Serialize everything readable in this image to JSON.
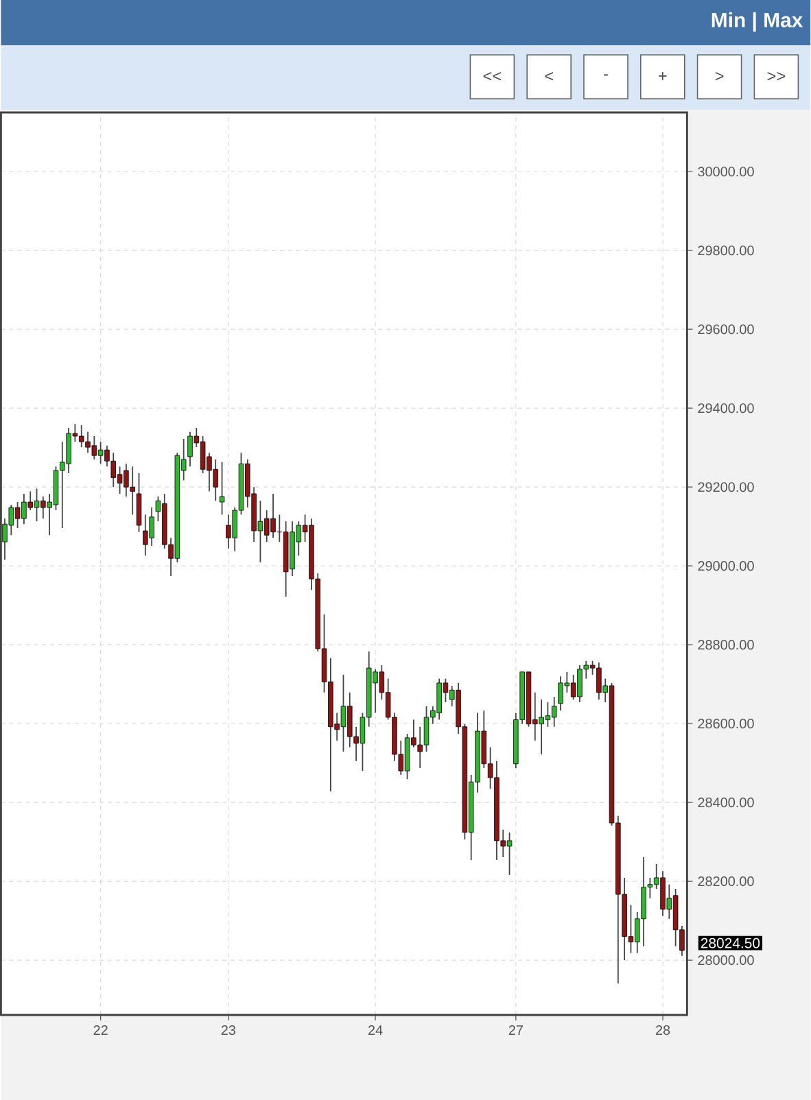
{
  "chart_data": {
    "type": "candlestick",
    "categories": [
      null,
      null,
      null,
      null,
      null,
      null,
      null,
      null,
      null,
      null,
      null,
      null,
      null,
      null,
      null,
      "22",
      null,
      null,
      null,
      null,
      null,
      null,
      null,
      null,
      null,
      null,
      null,
      null,
      null,
      null,
      null,
      null,
      null,
      null,
      null,
      "23",
      null,
      null,
      null,
      null,
      null,
      null,
      null,
      null,
      null,
      null,
      null,
      null,
      null,
      null,
      null,
      null,
      null,
      null,
      null,
      null,
      null,
      null,
      "24",
      null,
      null,
      null,
      null,
      null,
      null,
      null,
      null,
      null,
      null,
      null,
      null,
      null,
      null,
      null,
      null,
      null,
      null,
      null,
      null,
      null,
      "27",
      null,
      null,
      null,
      null,
      null,
      null,
      null,
      null,
      null,
      null,
      null,
      null,
      null,
      null,
      null,
      null,
      null,
      null,
      null,
      null,
      null,
      null,
      "28",
      null,
      null,
      null
    ],
    "ohlc": [
      [
        29061,
        29120,
        29016,
        29106
      ],
      [
        29103,
        29155,
        29078,
        29148
      ],
      [
        29148,
        29162,
        29096,
        29120
      ],
      [
        29120,
        29183,
        29106,
        29162
      ],
      [
        29162,
        29189,
        29141,
        29148
      ],
      [
        29148,
        29196,
        29113,
        29165
      ],
      [
        29165,
        29176,
        29120,
        29148
      ],
      [
        29148,
        29183,
        29078,
        29162
      ],
      [
        29155,
        29252,
        29141,
        29242
      ],
      [
        29242,
        29315,
        29096,
        29263
      ],
      [
        29259,
        29350,
        29235,
        29336
      ],
      [
        29336,
        29360,
        29315,
        29329
      ],
      [
        29329,
        29357,
        29301,
        29315
      ],
      [
        29315,
        29340,
        29287,
        29301
      ],
      [
        29305,
        29329,
        29270,
        29280
      ],
      [
        29280,
        29315,
        29259,
        29294
      ],
      [
        29294,
        29305,
        29252,
        29266
      ],
      [
        29266,
        29287,
        29200,
        29224
      ],
      [
        29232,
        29252,
        29183,
        29210
      ],
      [
        29242,
        29259,
        29176,
        29200
      ],
      [
        29200,
        29252,
        29130,
        29189
      ],
      [
        29183,
        29235,
        29086,
        29103
      ],
      [
        29089,
        29130,
        29026,
        29054
      ],
      [
        29071,
        29148,
        29051,
        29124
      ],
      [
        29138,
        29176,
        29113,
        29165
      ],
      [
        29158,
        29183,
        29044,
        29054
      ],
      [
        29054,
        29071,
        28974,
        29019
      ],
      [
        29019,
        29287,
        29009,
        29280
      ],
      [
        29242,
        29322,
        29217,
        29270
      ],
      [
        29277,
        29340,
        29252,
        29329
      ],
      [
        29329,
        29350,
        29301,
        29312
      ],
      [
        29315,
        29329,
        29235,
        29245
      ],
      [
        29277,
        29287,
        29189,
        29242
      ],
      [
        29245,
        29270,
        29165,
        29200
      ],
      [
        29162,
        29263,
        29130,
        29176
      ],
      [
        29103,
        29130,
        29044,
        29071
      ],
      [
        29071,
        29148,
        29037,
        29141
      ],
      [
        29141,
        29287,
        29130,
        29259
      ],
      [
        29259,
        29270,
        29148,
        29176
      ],
      [
        29183,
        29200,
        29061,
        29089
      ],
      [
        29089,
        29165,
        29009,
        29113
      ],
      [
        29120,
        29141,
        29061,
        29078
      ],
      [
        29120,
        29183,
        29071,
        29086
      ],
      [
        29086,
        29130,
        29061,
        29086
      ],
      [
        29086,
        29113,
        28922,
        28985
      ],
      [
        28992,
        29113,
        28974,
        29086
      ],
      [
        29061,
        29113,
        29026,
        29103
      ],
      [
        29103,
        29130,
        29061,
        29086
      ],
      [
        29103,
        29120,
        28939,
        28967
      ],
      [
        28967,
        28981,
        28783,
        28790
      ],
      [
        28790,
        28877,
        28679,
        28706
      ],
      [
        28706,
        28766,
        28428,
        28592
      ],
      [
        28599,
        28627,
        28557,
        28585
      ],
      [
        28592,
        28724,
        28529,
        28644
      ],
      [
        28644,
        28679,
        28540,
        28567
      ],
      [
        28567,
        28592,
        28505,
        28550
      ],
      [
        28550,
        28627,
        28480,
        28616
      ],
      [
        28616,
        28783,
        28592,
        28741
      ],
      [
        28703,
        28738,
        28627,
        28731
      ],
      [
        28731,
        28748,
        28661,
        28679
      ],
      [
        28679,
        28714,
        28610,
        28616
      ],
      [
        28616,
        28627,
        28505,
        28522
      ],
      [
        28522,
        28557,
        28470,
        28480
      ],
      [
        28480,
        28574,
        28459,
        28564
      ],
      [
        28564,
        28610,
        28540,
        28546
      ],
      [
        28546,
        28592,
        28487,
        28529
      ],
      [
        28546,
        28644,
        28529,
        28616
      ],
      [
        28616,
        28644,
        28599,
        28633
      ],
      [
        28627,
        28714,
        28610,
        28703
      ],
      [
        28703,
        28714,
        28654,
        28679
      ],
      [
        28661,
        28696,
        28644,
        28685
      ],
      [
        28685,
        28703,
        28574,
        28592
      ],
      [
        28592,
        28599,
        28306,
        28324
      ],
      [
        28324,
        28470,
        28254,
        28452
      ],
      [
        28452,
        28627,
        28425,
        28581
      ],
      [
        28581,
        28633,
        28487,
        28498
      ],
      [
        28498,
        28540,
        28435,
        28463
      ],
      [
        28463,
        28505,
        28254,
        28303
      ],
      [
        28303,
        28331,
        28261,
        28289
      ],
      [
        28289,
        28324,
        28216,
        28303
      ],
      [
        28498,
        28627,
        28487,
        28610
      ],
      [
        28610,
        28731,
        28599,
        28731
      ],
      [
        28731,
        28731,
        28592,
        28599
      ],
      [
        28610,
        28679,
        28557,
        28599
      ],
      [
        28599,
        28661,
        28522,
        28616
      ],
      [
        28610,
        28654,
        28592,
        28620
      ],
      [
        28616,
        28668,
        28592,
        28644
      ],
      [
        28651,
        28720,
        28633,
        28703
      ],
      [
        28696,
        28731,
        28679,
        28703
      ],
      [
        28703,
        28724,
        28661,
        28668
      ],
      [
        28668,
        28748,
        28654,
        28738
      ],
      [
        28738,
        28759,
        28714,
        28748
      ],
      [
        28748,
        28759,
        28724,
        28741
      ],
      [
        28741,
        28755,
        28661,
        28679
      ],
      [
        28679,
        28714,
        28654,
        28696
      ],
      [
        28696,
        28703,
        28341,
        28348
      ],
      [
        28348,
        28366,
        27941,
        28167
      ],
      [
        28167,
        28209,
        28000,
        28060
      ],
      [
        28060,
        28140,
        28018,
        28046
      ],
      [
        28046,
        28122,
        28018,
        28105
      ],
      [
        28105,
        28261,
        28035,
        28185
      ],
      [
        28185,
        28209,
        28157,
        28192
      ],
      [
        28192,
        28244,
        28181,
        28209
      ],
      [
        28209,
        28226,
        28112,
        28129
      ],
      [
        28129,
        28192,
        28105,
        28157
      ],
      [
        28164,
        28181,
        28035,
        28077
      ],
      [
        28077,
        28087,
        28011,
        28024.5
      ]
    ],
    "colors": [
      "#33b533",
      "#33b533",
      "#8b1616",
      "#33b533",
      "#8b1616",
      "#33b533",
      "#8b1616",
      "#33b533",
      "#33b533",
      "#33b533",
      "#33b533",
      "#8b1616",
      "#8b1616",
      "#8b1616",
      "#8b1616",
      "#33b533",
      "#8b1616",
      "#8b1616",
      "#8b1616",
      "#8b1616",
      "#8b1616",
      "#8b1616",
      "#8b1616",
      "#33b533",
      "#33b533",
      "#8b1616",
      "#8b1616",
      "#33b533",
      "#33b533",
      "#33b533",
      "#8b1616",
      "#8b1616",
      "#8b1616",
      "#8b1616",
      "#33b533",
      "#8b1616",
      "#33b533",
      "#33b533",
      "#8b1616",
      "#8b1616",
      "#33b533",
      "#8b1616",
      "#8b1616",
      "#8b1616",
      "#8b1616",
      "#33b533",
      "#33b533",
      "#8b1616",
      "#8b1616",
      "#8b1616",
      "#8b1616",
      "#8b1616",
      "#8b1616",
      "#33b533",
      "#8b1616",
      "#8b1616",
      "#33b533",
      "#33b533",
      "#33b533",
      "#8b1616",
      "#8b1616",
      "#8b1616",
      "#8b1616",
      "#33b533",
      "#8b1616",
      "#8b1616",
      "#33b533",
      "#33b533",
      "#33b533",
      "#8b1616",
      "#33b533",
      "#8b1616",
      "#8b1616",
      "#33b533",
      "#33b533",
      "#8b1616",
      "#8b1616",
      "#8b1616",
      "#8b1616",
      "#33b533",
      "#33b533",
      "#33b533",
      "#8b1616",
      "#8b1616",
      "#33b533",
      "#33b533",
      "#33b533",
      "#33b533",
      "#33b533",
      "#8b1616",
      "#33b533",
      "#33b533",
      "#8b1616",
      "#8b1616",
      "#33b533",
      "#8b1616",
      "#8b1616",
      "#8b1616",
      "#8b1616",
      "#33b533",
      "#33b533",
      "#33b533",
      "#33b533",
      "#8b1616",
      "#33b533",
      "#8b1616",
      "#8b1616"
    ],
    "ylim": [
      27861,
      30150
    ],
    "yticks": [
      {
        "value": 28000,
        "label": "28000.00"
      },
      {
        "value": 28200,
        "label": "28200.00"
      },
      {
        "value": 28400,
        "label": "28400.00"
      },
      {
        "value": 28600,
        "label": "28600.00"
      },
      {
        "value": 28800,
        "label": "28800.00"
      },
      {
        "value": 29000,
        "label": "29000.00"
      },
      {
        "value": 29200,
        "label": "29200.00"
      },
      {
        "value": 29400,
        "label": "29400.00"
      },
      {
        "value": 29600,
        "label": "29600.00"
      },
      {
        "value": 29800,
        "label": "29800.00"
      },
      {
        "value": 30000,
        "label": "30000.00"
      }
    ],
    "grid": true,
    "annotations": [
      "Min | Max",
      "<<",
      "<",
      "-",
      "+",
      ">",
      ">>",
      "28024.50"
    ]
  }
}
